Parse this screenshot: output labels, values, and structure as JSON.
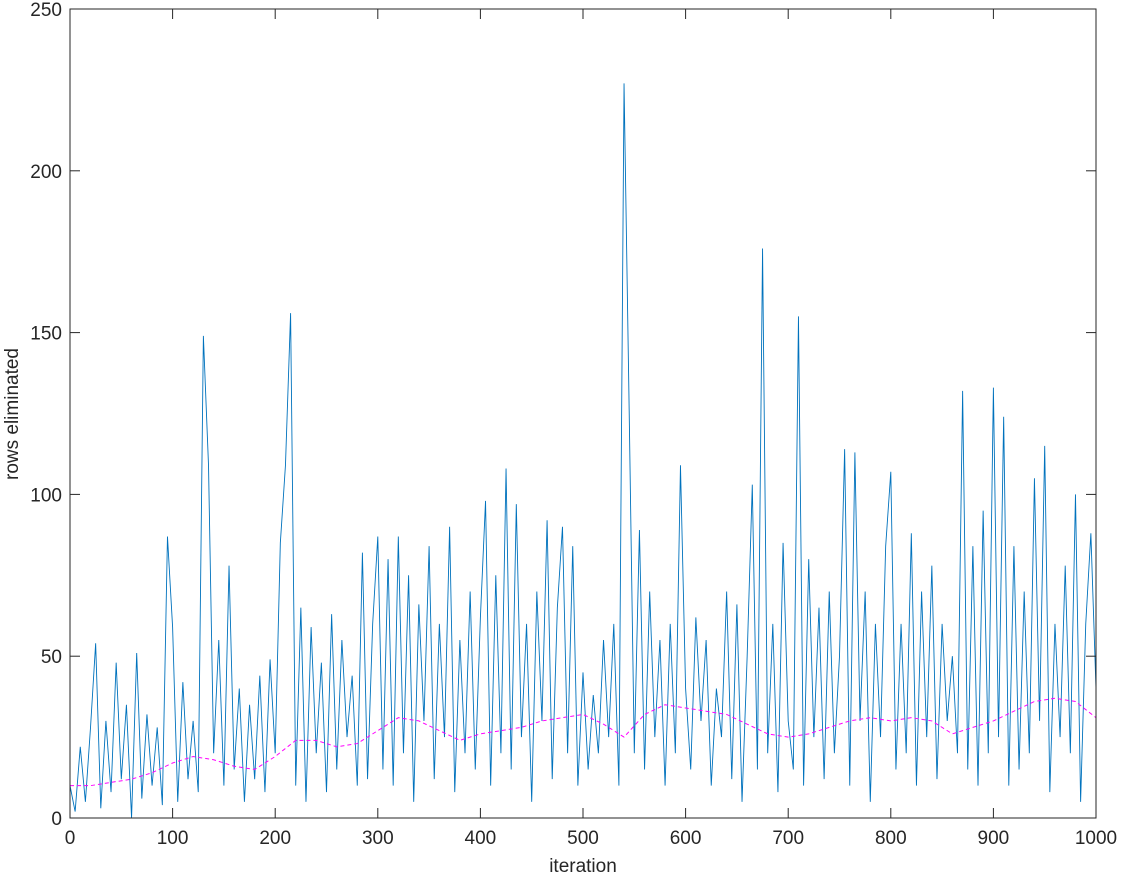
{
  "chart_data": {
    "type": "line",
    "xlabel": "iteration",
    "ylabel": "rows eliminated",
    "xlim": [
      0,
      1000
    ],
    "xticks": [
      0,
      100,
      200,
      300,
      400,
      500,
      600,
      700,
      800,
      900,
      1000
    ],
    "ylim": [
      0,
      250
    ],
    "yticks": [
      0,
      50,
      100,
      150,
      200,
      250
    ],
    "series": [
      {
        "color": "#0072BD",
        "dashed": false,
        "x": [
          0,
          5,
          10,
          15,
          20,
          25,
          30,
          35,
          40,
          45,
          50,
          55,
          60,
          65,
          70,
          75,
          80,
          85,
          90,
          95,
          100,
          105,
          110,
          115,
          120,
          125,
          130,
          135,
          140,
          145,
          150,
          155,
          160,
          165,
          170,
          175,
          180,
          185,
          190,
          195,
          200,
          205,
          210,
          215,
          220,
          225,
          230,
          235,
          240,
          245,
          250,
          255,
          260,
          265,
          270,
          275,
          280,
          285,
          290,
          295,
          300,
          305,
          310,
          315,
          320,
          325,
          330,
          335,
          340,
          345,
          350,
          355,
          360,
          365,
          370,
          375,
          380,
          385,
          390,
          395,
          400,
          405,
          410,
          415,
          420,
          425,
          430,
          435,
          440,
          445,
          450,
          455,
          460,
          465,
          470,
          475,
          480,
          485,
          490,
          495,
          500,
          505,
          510,
          515,
          520,
          525,
          530,
          535,
          540,
          545,
          550,
          555,
          560,
          565,
          570,
          575,
          580,
          585,
          590,
          595,
          600,
          605,
          610,
          615,
          620,
          625,
          630,
          635,
          640,
          645,
          650,
          655,
          660,
          665,
          670,
          675,
          680,
          685,
          690,
          695,
          700,
          705,
          710,
          715,
          720,
          725,
          730,
          735,
          740,
          745,
          750,
          755,
          760,
          765,
          770,
          775,
          780,
          785,
          790,
          795,
          800,
          805,
          810,
          815,
          820,
          825,
          830,
          835,
          840,
          845,
          850,
          855,
          860,
          865,
          870,
          875,
          880,
          885,
          890,
          895,
          900,
          905,
          910,
          915,
          920,
          925,
          930,
          935,
          940,
          945,
          950,
          955,
          960,
          965,
          970,
          975,
          980,
          985,
          990,
          995,
          1000
        ],
        "values": [
          10,
          2,
          22,
          5,
          28,
          54,
          3,
          30,
          8,
          48,
          12,
          35,
          0,
          51,
          6,
          32,
          10,
          28,
          4,
          87,
          59,
          5,
          42,
          12,
          30,
          8,
          149,
          109,
          20,
          55,
          10,
          78,
          15,
          40,
          5,
          35,
          12,
          44,
          8,
          49,
          20,
          85,
          109,
          156,
          10,
          65,
          5,
          59,
          20,
          48,
          8,
          63,
          15,
          55,
          25,
          44,
          10,
          82,
          12,
          60,
          87,
          15,
          80,
          10,
          87,
          20,
          75,
          5,
          66,
          30,
          84,
          12,
          60,
          25,
          90,
          8,
          55,
          20,
          70,
          15,
          62,
          98,
          10,
          75,
          20,
          108,
          15,
          97,
          25,
          60,
          5,
          70,
          30,
          92,
          12,
          65,
          90,
          20,
          84,
          10,
          45,
          15,
          38,
          20,
          55,
          25,
          60,
          10,
          227,
          126,
          20,
          89,
          15,
          70,
          25,
          55,
          10,
          60,
          20,
          109,
          40,
          15,
          62,
          30,
          55,
          10,
          40,
          25,
          70,
          12,
          66,
          5,
          50,
          103,
          15,
          176,
          20,
          60,
          8,
          85,
          30,
          15,
          155,
          10,
          80,
          25,
          65,
          12,
          70,
          20,
          50,
          114,
          10,
          113,
          30,
          70,
          5,
          60,
          25,
          84,
          107,
          15,
          60,
          20,
          88,
          10,
          70,
          25,
          78,
          12,
          60,
          30,
          50,
          20,
          132,
          15,
          84,
          10,
          95,
          20,
          133,
          25,
          124,
          10,
          84,
          15,
          70,
          20,
          105,
          30,
          115,
          8,
          60,
          25,
          78,
          20,
          100,
          5,
          60,
          88,
          40
        ]
      },
      {
        "color": "#FF00FF",
        "dashed": true,
        "x": [
          0,
          20,
          40,
          60,
          80,
          100,
          120,
          140,
          160,
          180,
          200,
          220,
          240,
          260,
          280,
          300,
          320,
          340,
          360,
          380,
          400,
          420,
          440,
          460,
          480,
          500,
          520,
          540,
          560,
          580,
          600,
          620,
          640,
          660,
          680,
          700,
          720,
          740,
          760,
          780,
          800,
          820,
          840,
          860,
          880,
          900,
          920,
          940,
          960,
          980,
          1000
        ],
        "values": [
          10,
          10,
          11,
          12,
          14,
          17,
          19,
          18,
          16,
          15,
          19,
          24,
          24,
          22,
          23,
          27,
          31,
          30,
          27,
          24,
          26,
          27,
          28,
          30,
          31,
          32,
          29,
          25,
          32,
          35,
          34,
          33,
          32,
          29,
          26,
          25,
          26,
          28,
          30,
          31,
          30,
          31,
          30,
          26,
          28,
          30,
          33,
          36,
          37,
          36,
          31
        ]
      }
    ]
  }
}
